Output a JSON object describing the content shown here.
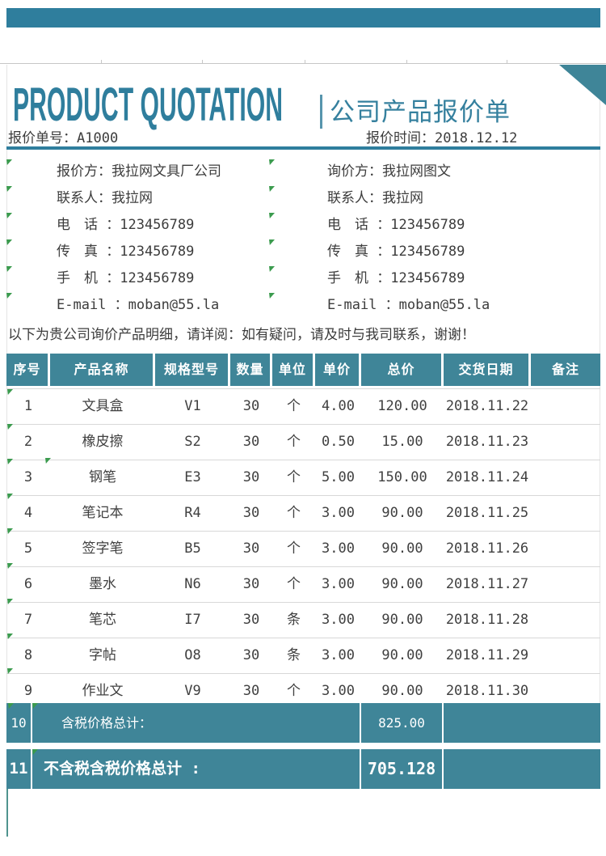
{
  "header": {
    "title_en": "PRODUCT QUOTATION",
    "title_cn": "公司产品报价单",
    "quote_no_label": "报价单号：",
    "quote_no": "A1000",
    "date_label": "报价时间：",
    "date": "2018.12.12"
  },
  "contact": {
    "left": [
      "报价方：我拉网文具厂公司",
      "联系人：我拉网",
      "电　话 ：123456789",
      "传　真 ：123456789",
      "手　机 ：123456789",
      "E-mail ：moban@55.la"
    ],
    "right": [
      "询价方：我拉网图文",
      "联系人：我拉网",
      "电　话 ：123456789",
      "传　真 ：123456789",
      "手　机 ：123456789",
      "E-mail ：moban@55.la"
    ]
  },
  "notice": "以下为贵公司询价产品明细，请详阅：如有疑问，请及时与我司联系，谢谢！",
  "table": {
    "columns": [
      "序号",
      "产品名称",
      "规格型号",
      "数量",
      "单位",
      "单价",
      "总价",
      "交货日期",
      "备注"
    ],
    "rows": [
      [
        "1",
        "文具盒",
        "V1",
        "30",
        "个",
        "4.00",
        "120.00",
        "2018.11.22",
        ""
      ],
      [
        "2",
        "橡皮擦",
        "S2",
        "30",
        "个",
        "0.50",
        "15.00",
        "2018.11.23",
        ""
      ],
      [
        "3",
        "钢笔",
        "E3",
        "30",
        "个",
        "5.00",
        "150.00",
        "2018.11.24",
        ""
      ],
      [
        "4",
        "笔记本",
        "R4",
        "30",
        "个",
        "3.00",
        "90.00",
        "2018.11.25",
        ""
      ],
      [
        "5",
        "签字笔",
        "B5",
        "30",
        "个",
        "3.00",
        "90.00",
        "2018.11.26",
        ""
      ],
      [
        "6",
        "墨水",
        "N6",
        "30",
        "个",
        "3.00",
        "90.00",
        "2018.11.27",
        ""
      ],
      [
        "7",
        "笔芯",
        "I7",
        "30",
        "条",
        "3.00",
        "90.00",
        "2018.11.28",
        ""
      ],
      [
        "8",
        "字帖",
        "O8",
        "30",
        "条",
        "3.00",
        "90.00",
        "2018.11.29",
        ""
      ],
      [
        "9",
        "作业文",
        "V9",
        "30",
        "个",
        "3.00",
        "90.00",
        "2018.11.30",
        ""
      ]
    ],
    "totals": [
      {
        "no": "10",
        "label": "含税价格总计：",
        "value": "825.00"
      },
      {
        "no": "11",
        "label": "不含税含税价格总计 :",
        "value": "705.128"
      }
    ]
  },
  "colors": {
    "accent": "#3f8598",
    "title_teal": "#2f7e9d",
    "text": "#404040",
    "marker_green": "#3b9b4e"
  }
}
